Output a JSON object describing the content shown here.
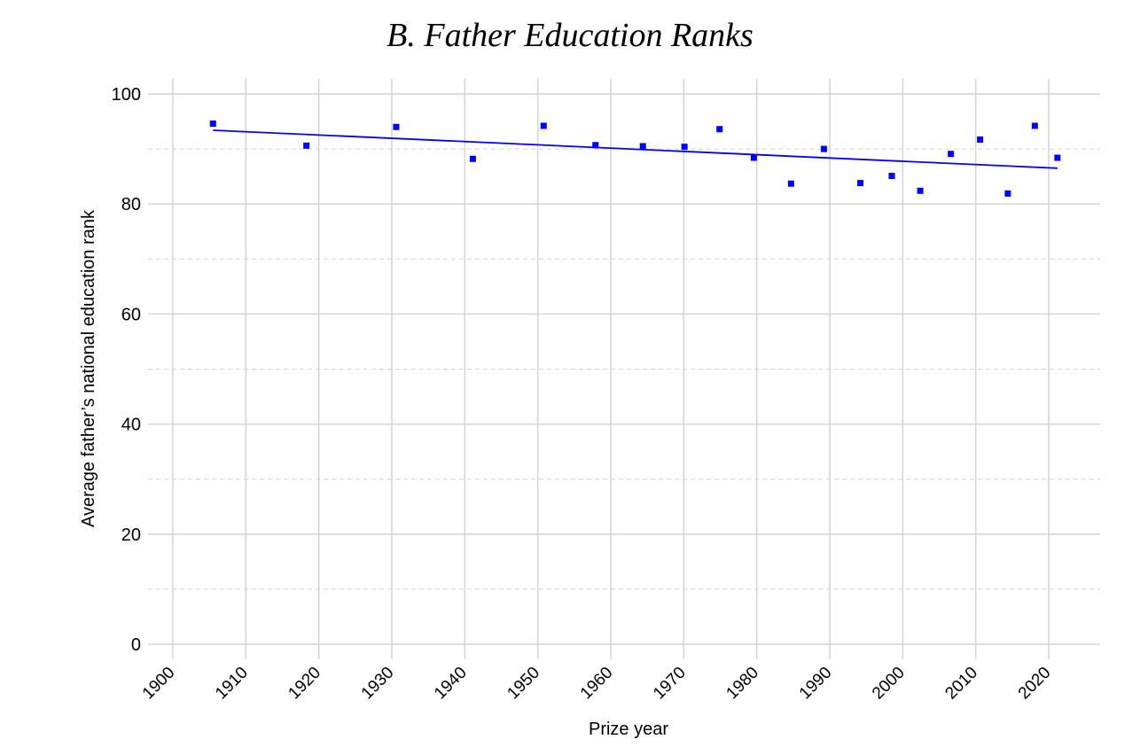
{
  "chart_data": {
    "type": "scatter",
    "title": "B. Father Education Ranks",
    "xlabel": "Prize year",
    "ylabel": "Average father’s national education rank",
    "xlim": [
      1900,
      2025
    ],
    "ylim": [
      0,
      100
    ],
    "x_ticks": [
      1900,
      1910,
      1920,
      1930,
      1940,
      1950,
      1960,
      1970,
      1980,
      1990,
      2000,
      2010,
      2020
    ],
    "y_ticks": [
      0,
      20,
      40,
      60,
      80,
      100
    ],
    "y_minor_dashed": [
      10,
      30,
      50,
      70,
      90
    ],
    "grid": true,
    "colors": {
      "points": "#0000ff",
      "trend": "#0000ff",
      "grid": "#d4d4d4"
    },
    "series": [
      {
        "points": [
          {
            "x": 1905.5,
            "y": 94.6
          },
          {
            "x": 1918.3,
            "y": 90.6
          },
          {
            "x": 1930.6,
            "y": 94.0
          },
          {
            "x": 1941.1,
            "y": 88.2
          },
          {
            "x": 1950.8,
            "y": 94.2
          },
          {
            "x": 1957.9,
            "y": 90.7
          },
          {
            "x": 1964.4,
            "y": 90.5
          },
          {
            "x": 1970.1,
            "y": 90.4
          },
          {
            "x": 1974.9,
            "y": 93.6
          },
          {
            "x": 1979.6,
            "y": 88.4
          },
          {
            "x": 1984.7,
            "y": 83.7
          },
          {
            "x": 1989.2,
            "y": 90.0
          },
          {
            "x": 1994.2,
            "y": 83.8
          },
          {
            "x": 1998.5,
            "y": 85.1
          },
          {
            "x": 2002.4,
            "y": 82.4
          },
          {
            "x": 2006.6,
            "y": 89.1
          },
          {
            "x": 2010.6,
            "y": 91.7
          },
          {
            "x": 2014.4,
            "y": 81.9
          },
          {
            "x": 2018.1,
            "y": 94.2
          },
          {
            "x": 2021.2,
            "y": 88.4
          }
        ]
      }
    ],
    "trend_line": {
      "x": [
        1905.5,
        2021.2
      ],
      "y": [
        93.4,
        86.5
      ]
    }
  }
}
